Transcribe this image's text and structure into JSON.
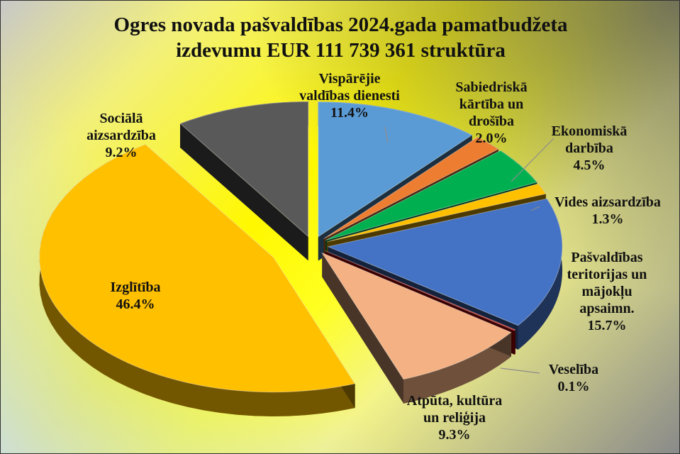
{
  "chart_data": {
    "type": "pie",
    "title_line1": "Ogres novada pašvaldības  2024.gada pamatbudžeta",
    "title_line2": "izdevumu EUR 111 739 361 struktūra",
    "slices": [
      {
        "label": [
          "Vispārējie",
          "valdības dienesti"
        ],
        "pct": "11.4%",
        "value": 11.4,
        "color": "#5b9bd5"
      },
      {
        "label": [
          "Sabiedriskā",
          "kārtība un",
          "drošība"
        ],
        "pct": "2.0%",
        "value": 2.0,
        "color": "#ed7d31"
      },
      {
        "label": [
          "Ekonomiskā",
          "darbība"
        ],
        "pct": "4.5%",
        "value": 4.5,
        "color": "#00b050"
      },
      {
        "label": [
          "Vides aizsardzība"
        ],
        "pct": "1.3%",
        "value": 1.3,
        "color": "#ffc000"
      },
      {
        "label": [
          "Pašvaldības",
          "teritorijas un",
          "mājokļu",
          "apsaimn."
        ],
        "pct": "15.7%",
        "value": 15.7,
        "color": "#4472c4"
      },
      {
        "label": [
          "Veselība"
        ],
        "pct": "0.1%",
        "value": 0.1,
        "color": "#c00000"
      },
      {
        "label": [
          "Atpūta, kultūra",
          "un reliģija"
        ],
        "pct": "9.3%",
        "value": 9.3,
        "color": "#f4b183"
      },
      {
        "label": [
          "Izglītība"
        ],
        "pct": "46.4%",
        "value": 46.4,
        "color": "#ffc000"
      },
      {
        "label": [
          "Sociālā",
          "aizsardzība"
        ],
        "pct": "9.2%",
        "value": 9.2,
        "color": "#595959"
      }
    ]
  }
}
